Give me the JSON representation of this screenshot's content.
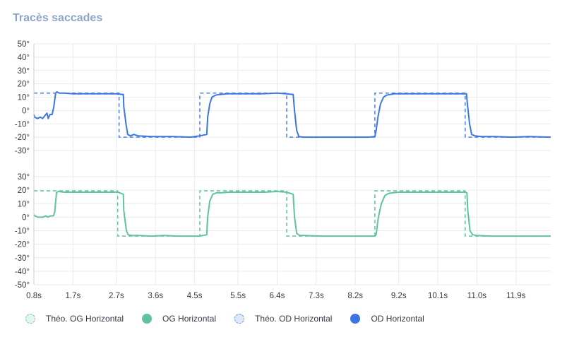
{
  "title": "Tracès saccades",
  "chart_data": {
    "type": "line",
    "title": "Tracès saccades",
    "x_ticks": [
      "0.8s",
      "1.7s",
      "2.7s",
      "3.6s",
      "4.5s",
      "5.5s",
      "6.4s",
      "7.3s",
      "8.2s",
      "9.2s",
      "10.1s",
      "11.0s",
      "11.9s"
    ],
    "x_tick_values": [
      0.8,
      1.7,
      2.7,
      3.6,
      4.5,
      5.5,
      6.4,
      7.3,
      8.2,
      9.2,
      10.1,
      11.0,
      11.9
    ],
    "xlim": [
      0.8,
      12.7
    ],
    "grid": true,
    "legend_position": "bottom",
    "colors": {
      "theo_og": "#5ec49a",
      "og": "#5ec49a",
      "theo_od": "#4a7fe0",
      "od": "#3c76e4"
    },
    "panels": [
      {
        "name": "OD",
        "ylim": [
          -35,
          50
        ],
        "y_ticks": [
          "50°",
          "40°",
          "30°",
          "20°",
          "10°",
          "0°",
          "-10°",
          "-20°",
          "-30°"
        ],
        "y_tick_values": [
          50,
          40,
          30,
          20,
          10,
          0,
          -10,
          -20,
          -30
        ],
        "series": [
          {
            "name": "Théo. OD Horizontal",
            "style": "dashed",
            "x": [
              0.8,
              2.76,
              2.76,
              4.62,
              4.62,
              6.62,
              6.62,
              8.65,
              8.65,
              10.73,
              10.73,
              12.7
            ],
            "y": [
              13,
              13,
              -20,
              -20,
              13,
              13,
              -20,
              -20,
              13,
              13,
              -20,
              -20
            ]
          },
          {
            "name": "OD Horizontal",
            "style": "solid",
            "x": [
              0.8,
              0.82,
              0.88,
              0.95,
              1.0,
              1.05,
              1.1,
              1.13,
              1.17,
              1.22,
              1.26,
              1.3,
              1.33,
              1.38,
              1.5,
              1.7,
              2.0,
              2.4,
              2.7,
              2.86,
              2.87,
              2.92,
              2.96,
              3.02,
              3.1,
              3.2,
              3.5,
              4.0,
              4.4,
              4.62,
              4.78,
              4.8,
              4.85,
              4.9,
              4.98,
              5.08,
              5.25,
              5.6,
              6.0,
              6.4,
              6.62,
              6.77,
              6.8,
              6.85,
              6.9,
              7.0,
              7.3,
              7.8,
              8.2,
              8.5,
              8.65,
              8.68,
              8.72,
              8.78,
              8.85,
              8.92,
              9.0,
              9.1,
              9.3,
              9.8,
              10.3,
              10.73,
              10.76,
              10.78,
              10.83,
              10.88,
              10.95,
              11.1,
              11.4,
              11.8,
              12.2,
              12.7
            ],
            "y": [
              -3,
              -5,
              -6,
              -5,
              -6,
              -4,
              -2,
              -6,
              -3,
              -3,
              3,
              13,
              14,
              13,
              13,
              12.5,
              12.5,
              12.5,
              12.5,
              12,
              3,
              -10,
              -18,
              -19,
              -18,
              -19,
              -19.5,
              -19.5,
              -20,
              -19,
              -18,
              -5,
              5,
              10,
              11.5,
              12,
              12.5,
              12.5,
              12.5,
              13,
              12.5,
              12,
              0,
              -15,
              -19.5,
              -20,
              -20,
              -20,
              -20,
              -20,
              -19.5,
              -15,
              -5,
              5,
              10,
              11.5,
              12,
              12.5,
              12.5,
              12.5,
              12.5,
              12.5,
              12.5,
              5,
              -10,
              -18,
              -19,
              -19.5,
              -19.5,
              -20,
              -19.5,
              -20
            ]
          }
        ]
      },
      {
        "name": "OG",
        "ylim": [
          -52,
          35
        ],
        "y_ticks": [
          "30°",
          "20°",
          "10°",
          "0°",
          "-10°",
          "-20°",
          "-30°",
          "-40°",
          "-50°"
        ],
        "y_tick_values": [
          30,
          20,
          10,
          0,
          -10,
          -20,
          -30,
          -40,
          -50
        ],
        "series": [
          {
            "name": "Théo. OG Horizontal",
            "style": "dashed",
            "x": [
              0.8,
              2.73,
              2.73,
              4.62,
              4.62,
              6.62,
              6.62,
              8.65,
              8.65,
              10.73,
              10.73,
              12.7
            ],
            "y": [
              19.5,
              19.5,
              -14,
              -14,
              19.5,
              19.5,
              -14,
              -14,
              19.5,
              19.5,
              -14,
              -14
            ]
          },
          {
            "name": "OG Horizontal",
            "style": "solid",
            "x": [
              0.8,
              0.82,
              0.9,
              1.0,
              1.08,
              1.12,
              1.18,
              1.25,
              1.28,
              1.32,
              1.36,
              1.5,
              1.8,
              2.2,
              2.5,
              2.74,
              2.86,
              2.87,
              2.93,
              2.97,
              3.05,
              3.2,
              3.5,
              3.8,
              4.1,
              4.4,
              4.62,
              4.78,
              4.8,
              4.85,
              4.92,
              5.0,
              5.1,
              5.3,
              5.7,
              6.1,
              6.4,
              6.62,
              6.77,
              6.8,
              6.85,
              6.92,
              7.0,
              7.4,
              7.8,
              8.2,
              8.5,
              8.65,
              8.68,
              8.73,
              8.8,
              8.88,
              8.96,
              9.05,
              9.2,
              9.5,
              9.9,
              10.3,
              10.73,
              10.77,
              10.79,
              10.84,
              10.9,
              11.0,
              11.3,
              11.7,
              12.1,
              12.7
            ],
            "y": [
              2,
              1,
              0,
              0,
              1,
              0,
              1,
              1,
              4,
              18,
              19,
              18.5,
              18.5,
              18.5,
              18.5,
              18.5,
              17,
              5,
              -10,
              -13,
              -13.5,
              -13.5,
              -14,
              -13.5,
              -14,
              -14,
              -14,
              -13,
              0,
              12,
              17,
              18,
              18,
              18.5,
              18.5,
              18.5,
              19,
              18.5,
              17,
              0,
              -12,
              -13.5,
              -13.5,
              -14,
              -14,
              -14,
              -14,
              -14,
              -13,
              0,
              10,
              16,
              17.5,
              18,
              18.5,
              18.5,
              18.5,
              18.5,
              18.5,
              18,
              5,
              -10,
              -13,
              -13.5,
              -14,
              -14,
              -14,
              -14
            ]
          }
        ]
      }
    ],
    "legend": [
      {
        "label": "Théo. OG Horizontal",
        "fill": "#e3f5ec",
        "border": "#6fcb9f",
        "dashed": true
      },
      {
        "label": "OG Horizontal",
        "fill": "#5ec49a",
        "border": "#5ec49a",
        "dashed": false
      },
      {
        "label": "Théo. OD Horizontal",
        "fill": "#dde7f8",
        "border": "#6b95e6",
        "dashed": true
      },
      {
        "label": "OD Horizontal",
        "fill": "#3c76e4",
        "border": "#3c76e4",
        "dashed": false
      }
    ]
  }
}
